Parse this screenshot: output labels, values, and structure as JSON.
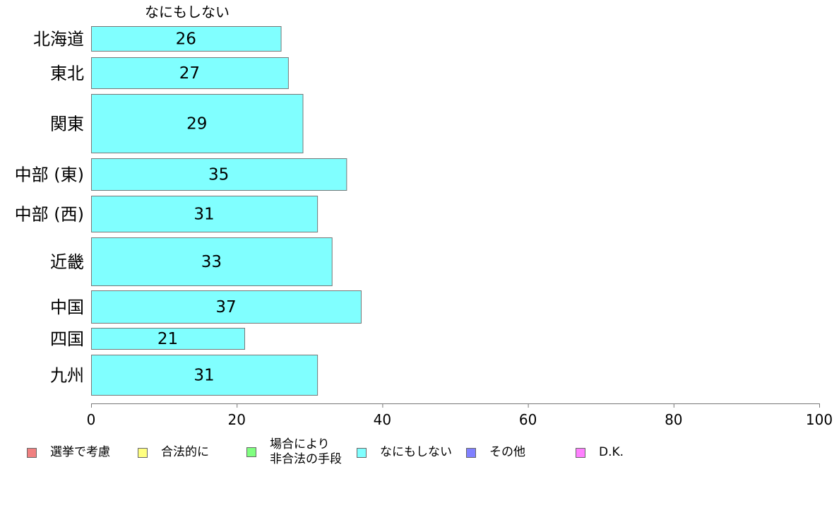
{
  "chart_data": {
    "type": "bar",
    "orientation": "horizontal",
    "series_title": "なにもしない",
    "categories": [
      "北海道",
      "東北",
      "関東",
      "中部 (東)",
      "中部 (西)",
      "近畿",
      "中国",
      "四国",
      "九州"
    ],
    "values": [
      26,
      27,
      29,
      35,
      31,
      33,
      37,
      21,
      31
    ],
    "data_labels": [
      "26",
      "27",
      "29",
      "35",
      "31",
      "33",
      "37",
      "21",
      "31"
    ],
    "xlim": [
      0,
      100
    ],
    "x_ticks": [
      "0",
      "20",
      "40",
      "60",
      "80",
      "100"
    ],
    "grid": false,
    "bar_color": "#80ffff",
    "legend_position": "bottom",
    "legend": [
      {
        "label": "選挙で考慮",
        "color": "#f08080"
      },
      {
        "label": "合法的に",
        "color": "#ffff80"
      },
      {
        "label": "場合により\n非合法の手段",
        "color": "#80ff80"
      },
      {
        "label": "なにもしない",
        "color": "#80ffff"
      },
      {
        "label": "その他",
        "color": "#8080ff"
      },
      {
        "label": "D.K.",
        "color": "#ff80ff"
      }
    ]
  }
}
